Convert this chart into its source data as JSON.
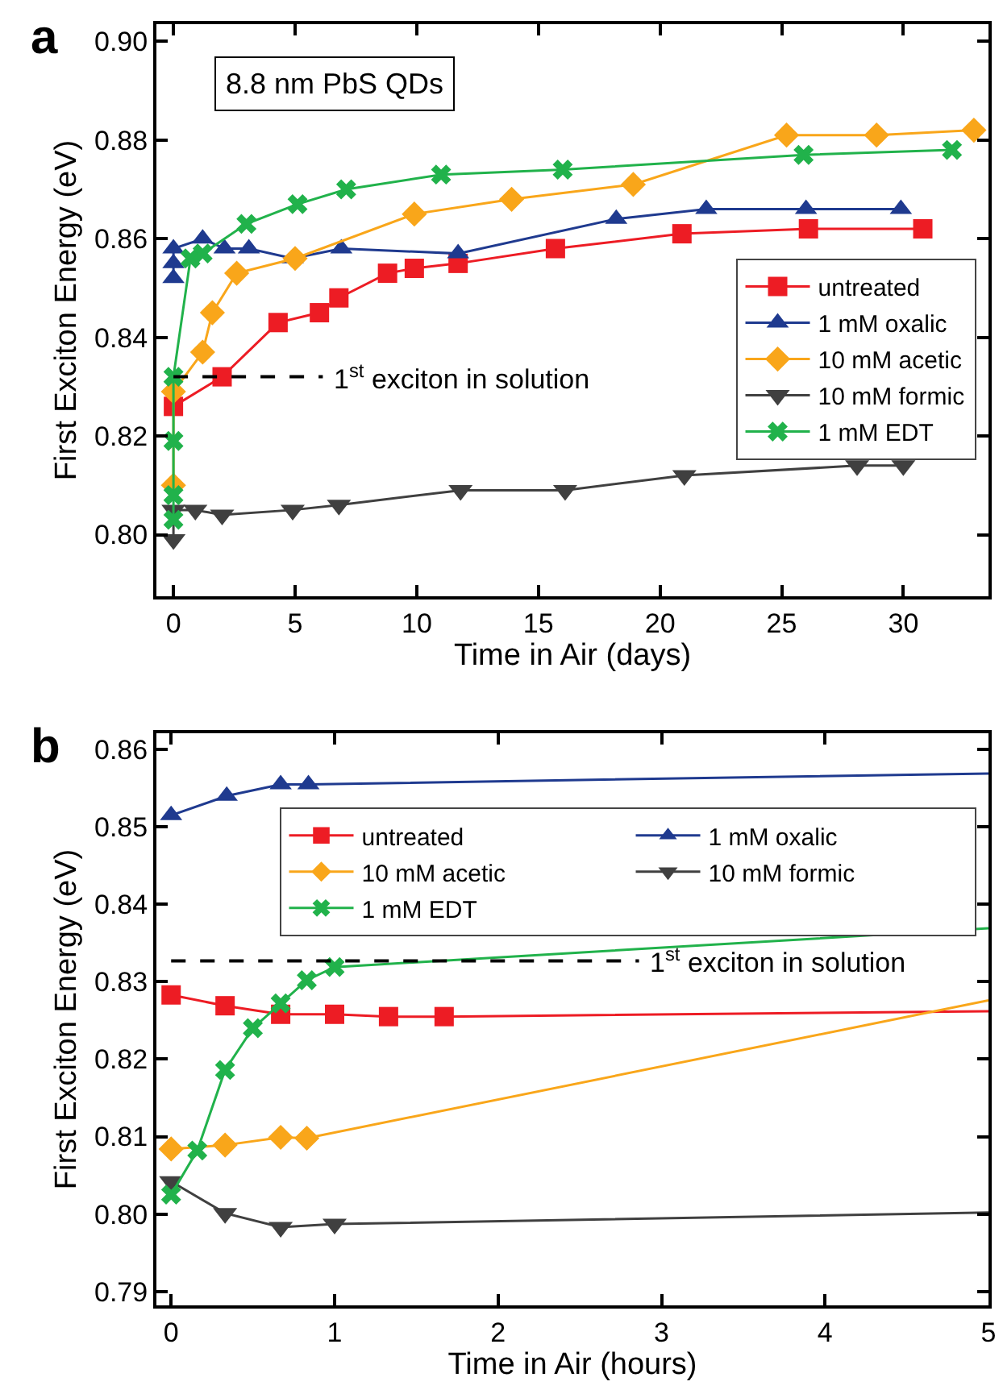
{
  "chart_data": [
    {
      "type": "line",
      "xlabel": "Time in Air (days)",
      "ylabel": "First Exciton Energy (eV)",
      "xlim": [
        -0.7,
        33.5
      ],
      "ylim": [
        0.7875,
        0.9035
      ],
      "xticks": [
        0,
        5,
        10,
        15,
        20,
        25,
        30
      ],
      "yticks": [
        {
          "value": 0.8,
          "label": "0.80"
        },
        {
          "value": 0.82,
          "label": "0.82"
        },
        {
          "value": 0.84,
          "label": "0.84"
        },
        {
          "value": 0.86,
          "label": "0.86"
        },
        {
          "value": 0.88,
          "label": "0.88"
        },
        {
          "value": 0.9,
          "label": "0.90"
        }
      ],
      "legend": "right",
      "annotations": [
        "a",
        "8.8 nm PbS QDs"
      ],
      "ref_lines": [
        {
          "axis": "y",
          "value": 0.832,
          "label": "1$^{st}$ exciton in solution",
          "color": "#000000",
          "line_style": "dashed"
        }
      ],
      "series": [
        {
          "name": "untreated",
          "color": "#ed1c24",
          "marker": "square",
          "x": [
            0,
            2.0,
            4.3,
            6.0,
            6.8,
            8.8,
            9.9,
            11.7,
            15.7,
            20.9,
            26.1,
            30.8
          ],
          "values": [
            0.826,
            0.832,
            0.843,
            0.845,
            0.848,
            0.853,
            0.854,
            0.855,
            0.858,
            0.861,
            0.862,
            0.862
          ]
        },
        {
          "name": "1 mM oxalic",
          "color": "#1f3a8f",
          "marker": "triangle",
          "x": [
            0,
            0,
            0,
            1.2,
            2.1,
            3.1,
            4.9,
            6.9,
            11.7,
            18.2,
            21.9,
            26.0,
            29.9
          ],
          "values": [
            0.852,
            0.855,
            0.858,
            0.86,
            0.858,
            0.858,
            0.856,
            0.858,
            0.857,
            0.864,
            0.866,
            0.866,
            0.866
          ]
        },
        {
          "name": "10 mM acetic",
          "color": "#f9a61a",
          "marker": "diamond",
          "x": [
            0,
            0,
            1.2,
            1.6,
            2.6,
            5.0,
            9.9,
            13.9,
            18.9,
            25.2,
            28.9,
            32.9
          ],
          "values": [
            0.81,
            0.829,
            0.837,
            0.845,
            0.853,
            0.856,
            0.865,
            0.868,
            0.871,
            0.881,
            0.881,
            0.882
          ]
        },
        {
          "name": "10 mM formic",
          "color": "#404040",
          "marker": "triangle-down",
          "x": [
            0,
            0,
            0.9,
            2.0,
            4.9,
            6.8,
            11.8,
            16.1,
            21.0,
            28.1,
            30.0
          ],
          "values": [
            0.799,
            0.805,
            0.805,
            0.804,
            0.805,
            0.806,
            0.809,
            0.809,
            0.812,
            0.814,
            0.814
          ]
        },
        {
          "name": "1 mM EDT",
          "color": "#21b24b",
          "marker": "cross",
          "x": [
            0,
            0,
            0,
            0,
            0.7,
            1.2,
            3.0,
            5.1,
            7.1,
            11.0,
            16.0,
            25.9,
            32.0
          ],
          "values": [
            0.803,
            0.808,
            0.819,
            0.832,
            0.856,
            0.857,
            0.863,
            0.867,
            0.87,
            0.873,
            0.874,
            0.877,
            0.878
          ]
        }
      ]
    },
    {
      "type": "line",
      "xlabel": "Time in Air (hours)",
      "ylabel": "First Exciton Energy (eV)",
      "xlim": [
        -0.09,
        5.0
      ],
      "ylim": [
        0.7882,
        0.8621
      ],
      "xticks": [
        0,
        1,
        2,
        3,
        4,
        5
      ],
      "yticks": [
        {
          "value": 0.79,
          "label": "0.79"
        },
        {
          "value": 0.8,
          "label": "0.80"
        },
        {
          "value": 0.81,
          "label": "0.81"
        },
        {
          "value": 0.82,
          "label": "0.82"
        },
        {
          "value": 0.83,
          "label": "0.83"
        },
        {
          "value": 0.84,
          "label": "0.84"
        },
        {
          "value": 0.85,
          "label": "0.85"
        },
        {
          "value": 0.86,
          "label": "0.86"
        }
      ],
      "legend": "top right",
      "annotations": [
        "b"
      ],
      "ref_lines": [
        {
          "axis": "y",
          "value": 0.8327,
          "label": "1$^{st}$ exciton in solution",
          "color": "#000000",
          "line_style": "dashed"
        }
      ],
      "series": [
        {
          "name": "untreated",
          "color": "#ed1c24",
          "marker": "square",
          "x": [
            0,
            0.33,
            0.67,
            1.0,
            1.33,
            1.67,
            5.0
          ],
          "values": [
            0.8283,
            0.8269,
            0.8258,
            0.8258,
            0.8255,
            0.8255,
            0.8262
          ]
        },
        {
          "name": "1 mM oxalic",
          "color": "#1f3a8f",
          "marker": "triangle",
          "x": [
            0,
            0.34,
            0.67,
            0.84,
            5.0
          ],
          "values": [
            0.8515,
            0.854,
            0.8555,
            0.8555,
            0.8569
          ]
        },
        {
          "name": "10 mM acetic",
          "color": "#f9a61a",
          "marker": "diamond",
          "x": [
            0,
            0.33,
            0.67,
            0.83,
            5.0
          ],
          "values": [
            0.8084,
            0.8089,
            0.8099,
            0.8098,
            0.8276
          ]
        },
        {
          "name": "10 mM formic",
          "color": "#404040",
          "marker": "triangle-down",
          "x": [
            0,
            0.33,
            0.67,
            1.0,
            5.0
          ],
          "values": [
            0.8042,
            0.8001,
            0.7983,
            0.7987,
            0.8002
          ]
        },
        {
          "name": "1 mM EDT",
          "color": "#21b24b",
          "marker": "cross",
          "x": [
            0,
            0.16,
            0.33,
            0.5,
            0.67,
            0.83,
            1.0,
            5.0
          ],
          "values": [
            0.8025,
            0.8082,
            0.8186,
            0.824,
            0.8272,
            0.8302,
            0.8319,
            0.8369
          ]
        }
      ]
    }
  ]
}
